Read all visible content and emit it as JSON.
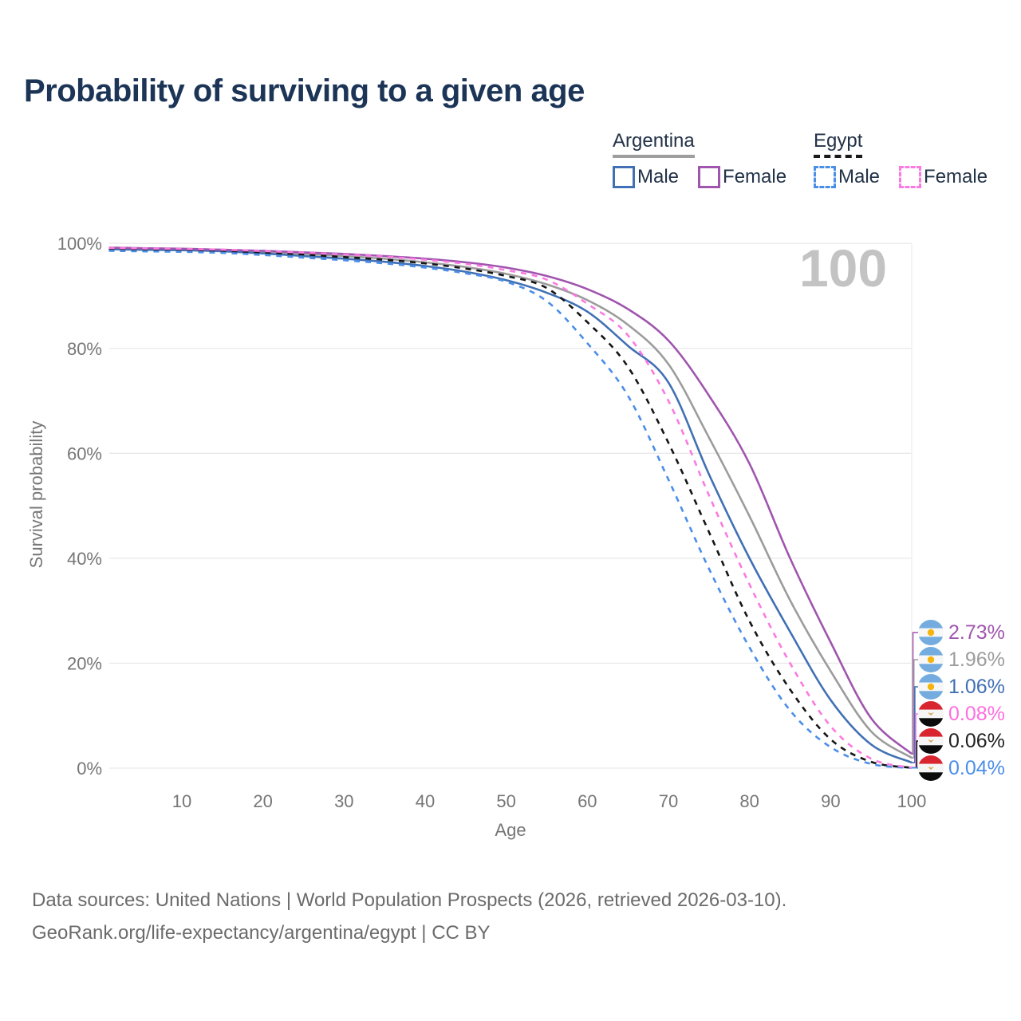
{
  "title": "Probability of surviving to a given age",
  "watermark_age": "100",
  "legend": {
    "groups": [
      {
        "country": "Argentina",
        "line_style": "solid",
        "items": [
          {
            "label": "Male",
            "color": "#4170b4"
          },
          {
            "label": "Female",
            "color": "#a055ae"
          }
        ]
      },
      {
        "country": "Egypt",
        "line_style": "dashed",
        "items": [
          {
            "label": "Male",
            "color": "#4b8ee8"
          },
          {
            "label": "Female",
            "color": "#fb7ae1"
          }
        ]
      }
    ]
  },
  "chart_data": {
    "type": "line",
    "title": "Probability of surviving to a given age",
    "xlabel": "Age",
    "ylabel": "Survival probability",
    "xlim": [
      1,
      100
    ],
    "ylim": [
      0,
      100
    ],
    "grid": "horizontal",
    "x_ticks": [
      10,
      20,
      30,
      40,
      50,
      60,
      70,
      80,
      90,
      100
    ],
    "y_ticks": [
      0,
      20,
      40,
      60,
      80,
      100
    ],
    "y_tick_labels": [
      "0%",
      "20%",
      "40%",
      "60%",
      "80%",
      "100%"
    ],
    "ages": [
      1,
      5,
      10,
      15,
      20,
      25,
      30,
      35,
      40,
      45,
      50,
      55,
      60,
      65,
      70,
      75,
      80,
      85,
      90,
      95,
      100
    ],
    "series": [
      {
        "id": "argentina_total",
        "name": "Argentina",
        "country": "Argentina",
        "sex": "Total",
        "color": "#9c9c9c",
        "dash": false,
        "values": [
          99.05,
          98.95,
          98.85,
          98.7,
          98.4,
          98.0,
          97.6,
          97.1,
          96.4,
          95.5,
          94.2,
          92.2,
          89.2,
          84.5,
          77.0,
          63.0,
          48.0,
          32.0,
          18.5,
          7.0,
          1.96
        ]
      },
      {
        "id": "argentina_male",
        "name": "Argentina Male",
        "country": "Argentina",
        "sex": "Male",
        "color": "#4170b4",
        "dash": false,
        "values": [
          98.9,
          98.8,
          98.7,
          98.5,
          98.1,
          97.6,
          97.1,
          96.5,
          95.7,
          94.6,
          93.0,
          90.6,
          87.0,
          80.5,
          73.5,
          56.0,
          40.0,
          26.0,
          13.0,
          4.5,
          1.06
        ]
      },
      {
        "id": "argentina_female",
        "name": "Argentina Female",
        "country": "Argentina",
        "sex": "Female",
        "color": "#a055ae",
        "dash": false,
        "values": [
          99.2,
          99.1,
          99.0,
          98.8,
          98.6,
          98.3,
          98.0,
          97.6,
          97.1,
          96.4,
          95.4,
          93.8,
          91.3,
          87.5,
          81.5,
          71.0,
          58.0,
          40.0,
          24.0,
          9.5,
          2.73
        ]
      },
      {
        "id": "egypt_total",
        "name": "Egypt",
        "country": "Egypt",
        "sex": "Total",
        "color": "#151515",
        "dash": true,
        "values": [
          99.0,
          98.9,
          98.8,
          98.6,
          98.3,
          97.9,
          97.4,
          96.9,
          96.2,
          95.2,
          93.8,
          91.5,
          85.0,
          76.5,
          62.0,
          45.0,
          28.0,
          15.0,
          5.5,
          1.2,
          0.06
        ]
      },
      {
        "id": "egypt_male",
        "name": "Egypt Male",
        "country": "Egypt",
        "sex": "Male",
        "color": "#4b8ee8",
        "dash": true,
        "values": [
          98.6,
          98.5,
          98.4,
          98.2,
          97.8,
          97.3,
          96.8,
          96.2,
          95.4,
          94.3,
          92.7,
          89.0,
          81.0,
          71.0,
          55.0,
          38.0,
          23.0,
          11.0,
          4.0,
          0.8,
          0.04
        ]
      },
      {
        "id": "egypt_female",
        "name": "Egypt Female",
        "country": "Egypt",
        "sex": "Female",
        "color": "#fb7ae1",
        "dash": true,
        "values": [
          99.15,
          99.05,
          98.95,
          98.8,
          98.55,
          98.25,
          97.9,
          97.5,
          96.9,
          96.1,
          94.9,
          93.1,
          88.5,
          82.5,
          70.0,
          52.0,
          35.0,
          20.0,
          8.0,
          1.8,
          0.08
        ]
      }
    ],
    "end_labels": [
      {
        "series": "argentina_female",
        "value": "2.73%",
        "flag": "argentina",
        "color": "#a055ae"
      },
      {
        "series": "argentina_total",
        "value": "1.96%",
        "flag": "argentina",
        "color": "#9c9c9c"
      },
      {
        "series": "argentina_male",
        "value": "1.06%",
        "flag": "argentina",
        "color": "#4170b4"
      },
      {
        "series": "egypt_female",
        "value": "0.08%",
        "flag": "egypt",
        "color": "#ff6ee0"
      },
      {
        "series": "egypt_total",
        "value": "0.06%",
        "flag": "egypt",
        "color": "#222222"
      },
      {
        "series": "egypt_male",
        "value": "0.04%",
        "flag": "egypt",
        "color": "#4b8ee8"
      }
    ]
  },
  "footer": {
    "line1": "Data sources: United Nations | World Population Prospects (2026, retrieved 2026-03-10).",
    "line2": "GeoRank.org/life-expectancy/argentina/egypt | CC BY"
  }
}
